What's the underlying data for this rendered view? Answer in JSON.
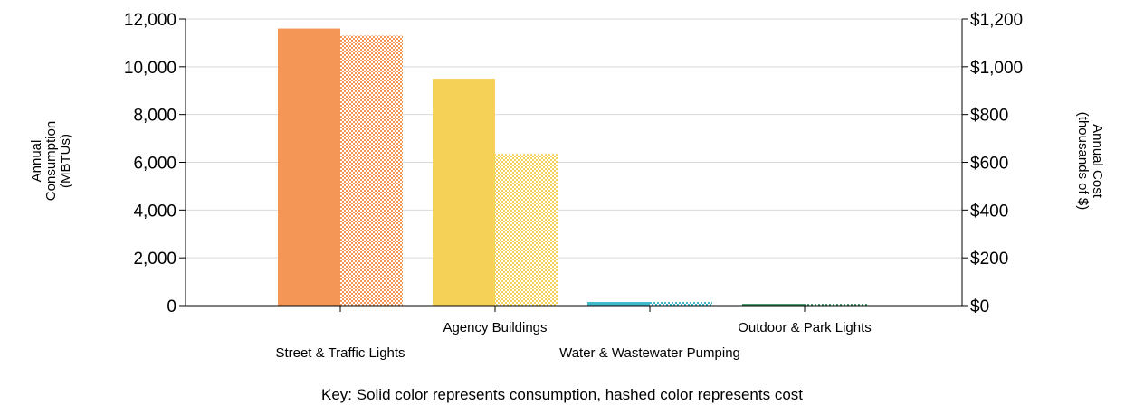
{
  "chart_data": {
    "type": "bar",
    "categories": [
      "Street & Traffic Lights",
      "Agency Buildings",
      "Water & Wastewater Pumping",
      "Outdoor & Park Lights"
    ],
    "series": [
      {
        "values": [
          11600,
          9500,
          150,
          70
        ],
        "axis": "left",
        "style": "solid"
      },
      {
        "values": [
          1130,
          635,
          15,
          7
        ],
        "axis": "right",
        "style": "hashed"
      }
    ],
    "colors": [
      "#F39656",
      "#F5D157",
      "#3FB8CC",
      "#2E8B57"
    ],
    "ylabel_left": [
      "Annual",
      "Consumption",
      "(MBTUs)"
    ],
    "ylabel_right": [
      "Annual Cost",
      "(thousands of $)"
    ],
    "ylim_left": [
      0,
      12000
    ],
    "ylim_right": [
      0,
      1200
    ],
    "yticks_left": [
      "0",
      "2,000",
      "4,000",
      "6,000",
      "8,000",
      "10,000",
      "12,000"
    ],
    "yticks_right": [
      "$0",
      "$200",
      "$400",
      "$600",
      "$800",
      "$1,000",
      "$1,200"
    ],
    "grid": true,
    "legend": "none"
  },
  "key_note": "Key: Solid color represents consumption, hashed color represents cost"
}
